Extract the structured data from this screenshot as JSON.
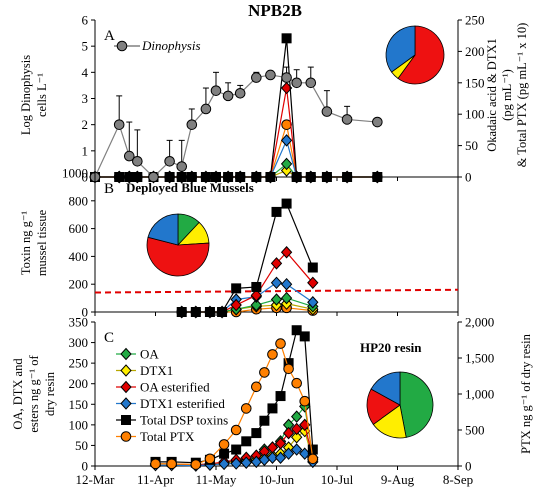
{
  "chart_data": [
    {
      "panel": "A",
      "type": "line",
      "title": "NPB2B",
      "y_left_label": [
        "Log Dinophysis",
        "cells L⁻¹"
      ],
      "y_right_label": [
        "Okadaic acid & DTX1",
        "(pg mL⁻¹)",
        "& Total PTX (pg mL⁻¹ x 10)"
      ],
      "y_left_ticks": [
        "0",
        "1",
        "2",
        "3",
        "4",
        "5",
        "6"
      ],
      "y_right_ticks": [
        "0",
        "50",
        "100",
        "150",
        "200",
        "250"
      ],
      "ylim": [
        0,
        6
      ],
      "ylim_right": [
        0,
        250
      ],
      "legend_labels": [
        "Dinophysis"
      ],
      "pie": [
        {
          "label": "Total DSP",
          "value": 60,
          "color": "#ee1111"
        },
        {
          "label": "OA",
          "value": 5,
          "color": "#ffee00"
        },
        {
          "label": "DTX1",
          "value": 35,
          "color": "#2277cc"
        }
      ],
      "series": [
        {
          "name": "Dinophysis",
          "color": "#808080",
          "marker": "circle",
          "x": [
            0,
            12,
            17,
            21,
            29,
            37,
            43,
            48,
            55,
            60,
            66,
            72,
            80,
            87,
            95,
            100,
            107,
            115,
            125,
            140
          ],
          "y": [
            0,
            2.0,
            0.8,
            0.6,
            0,
            0.6,
            0.4,
            2.0,
            2.6,
            3.3,
            3.1,
            3.2,
            3.8,
            3.9,
            3.8,
            3.6,
            3.6,
            2.5,
            2.2,
            2.1
          ]
        },
        {
          "name": "Total DSP",
          "color": "#000000",
          "marker": "square",
          "x": [
            0,
            12,
            17,
            21,
            29,
            37,
            43,
            48,
            55,
            60,
            66,
            72,
            80,
            87,
            95,
            100,
            107,
            115,
            125,
            140
          ],
          "y": [
            0,
            0,
            0,
            0,
            0,
            0,
            0,
            0,
            0,
            0,
            0,
            0,
            0,
            0,
            5.3,
            0,
            0,
            0,
            0,
            0
          ]
        },
        {
          "name": "OA esterified",
          "color": "#e00000",
          "marker": "diamond",
          "x": [
            0,
            12,
            17,
            21,
            29,
            37,
            43,
            48,
            55,
            60,
            66,
            72,
            80,
            87,
            95,
            100,
            107,
            115,
            125,
            140
          ],
          "y": [
            0,
            0,
            0,
            0,
            0,
            0,
            0,
            0,
            0,
            0,
            0,
            0,
            0,
            0,
            3.4,
            0,
            0,
            0,
            0,
            0
          ]
        },
        {
          "name": "DTX1 esterified",
          "color": "#2277cc",
          "marker": "diamond",
          "x": [
            0,
            12,
            17,
            21,
            29,
            37,
            43,
            48,
            55,
            60,
            66,
            72,
            80,
            87,
            95,
            100,
            107,
            115,
            125,
            140
          ],
          "y": [
            0,
            0,
            0,
            0,
            0,
            0,
            0,
            0,
            0,
            0,
            0,
            0,
            0,
            0,
            1.4,
            0,
            0,
            0,
            0,
            0
          ]
        },
        {
          "name": "OA",
          "color": "#22aa44",
          "marker": "diamond",
          "x": [
            0,
            12,
            17,
            21,
            29,
            37,
            43,
            48,
            55,
            60,
            66,
            72,
            80,
            87,
            95,
            100,
            107,
            115,
            125,
            140
          ],
          "y": [
            0,
            0,
            0,
            0,
            0,
            0,
            0,
            0,
            0,
            0,
            0,
            0,
            0,
            0,
            0.5,
            0,
            0,
            0,
            0,
            0
          ]
        },
        {
          "name": "DTX1",
          "color": "#ffee00",
          "marker": "diamond",
          "x": [
            0,
            12,
            17,
            21,
            29,
            37,
            43,
            48,
            55,
            60,
            66,
            72,
            80,
            87,
            95,
            100,
            107,
            115,
            125,
            140
          ],
          "y": [
            0,
            0,
            0,
            0,
            0,
            0,
            0,
            0,
            0,
            0,
            0,
            0,
            0,
            0,
            0.25,
            0,
            0,
            0,
            0,
            0
          ]
        },
        {
          "name": "Total PTX",
          "color": "#ff8000",
          "marker": "circle",
          "x": [
            0,
            12,
            17,
            21,
            29,
            37,
            43,
            48,
            55,
            60,
            66,
            72,
            80,
            87,
            95,
            100,
            107,
            115,
            125,
            140
          ],
          "y": [
            0,
            0,
            0,
            0,
            0,
            0,
            0,
            0,
            0,
            0,
            0,
            0,
            0,
            0,
            2.0,
            0,
            0,
            0,
            0,
            0
          ]
        }
      ]
    },
    {
      "panel": "B",
      "type": "line",
      "annotation": "Deployed Blue Mussels",
      "y_label": [
        "Toxin ng g⁻¹",
        "mussel tissue"
      ],
      "y_ticks": [
        "0",
        "200",
        "400",
        "600",
        "800",
        "1000"
      ],
      "ylim": [
        0,
        1000
      ],
      "reference_line": {
        "y_start": 140,
        "y_end": 160,
        "color": "#e00000",
        "style": "dashed"
      },
      "pie": [
        {
          "label": "OA",
          "value": 12,
          "color": "#22aa44"
        },
        {
          "label": "DTX1",
          "value": 12,
          "color": "#ffee00"
        },
        {
          "label": "OA esterified",
          "value": 55,
          "color": "#ee1111"
        },
        {
          "label": "DTX1 esterified",
          "value": 21,
          "color": "#2277cc"
        }
      ],
      "series": [
        {
          "name": "Total DSP",
          "color": "#000000",
          "marker": "square",
          "x": [
            43,
            50,
            57,
            63,
            70,
            80,
            90,
            95,
            108
          ],
          "y": [
            0,
            0,
            0,
            0,
            170,
            180,
            720,
            780,
            320
          ]
        },
        {
          "name": "OA esterified",
          "color": "#e00000",
          "marker": "diamond",
          "x": [
            43,
            50,
            57,
            63,
            70,
            80,
            90,
            95,
            108
          ],
          "y": [
            0,
            0,
            0,
            0,
            50,
            120,
            350,
            430,
            210
          ]
        },
        {
          "name": "DTX1 esterified",
          "color": "#2277cc",
          "marker": "diamond",
          "x": [
            43,
            50,
            57,
            63,
            70,
            80,
            90,
            95,
            108
          ],
          "y": [
            0,
            0,
            0,
            0,
            90,
            110,
            210,
            200,
            70
          ]
        },
        {
          "name": "OA",
          "color": "#22aa44",
          "marker": "diamond",
          "x": [
            43,
            50,
            57,
            63,
            70,
            80,
            90,
            95,
            108
          ],
          "y": [
            0,
            0,
            0,
            0,
            20,
            50,
            90,
            100,
            40
          ]
        },
        {
          "name": "DTX1",
          "color": "#ffee00",
          "marker": "diamond",
          "x": [
            43,
            50,
            57,
            63,
            70,
            80,
            90,
            95,
            108
          ],
          "y": [
            0,
            0,
            0,
            0,
            20,
            40,
            50,
            60,
            20
          ]
        },
        {
          "name": "Total PTX",
          "color": "#ff8000",
          "marker": "circle",
          "x": [
            43,
            50,
            57,
            63,
            70,
            80,
            90,
            95,
            108
          ],
          "y": [
            0,
            0,
            0,
            0,
            0,
            20,
            30,
            30,
            10
          ]
        }
      ]
    },
    {
      "panel": "C",
      "type": "line",
      "annotation": "HP20 resin",
      "y_left_label": [
        "OA, DTX and",
        "esters ng g⁻¹ of",
        "dry resin"
      ],
      "y_right_label": [
        "PTX ng g⁻¹ of dry resin"
      ],
      "y_left_ticks": [
        "0",
        "50",
        "100",
        "150",
        "200",
        "250",
        "300",
        "350"
      ],
      "y_right_ticks": [
        "0",
        "500",
        "1,000",
        "1,500",
        "2,000"
      ],
      "ylim": [
        0,
        350
      ],
      "ylim_right": [
        0,
        2000
      ],
      "x_ticks": [
        "12-Mar",
        "11-Apr",
        "11-May",
        "10-Jun",
        "10-Jul",
        "9-Aug",
        "8-Sep"
      ],
      "xlim": [
        0,
        180
      ],
      "legend_labels": [
        "OA",
        "DTX1",
        "OA esterified",
        "DTX1 esterified",
        "Total DSP toxins",
        "Total PTX"
      ],
      "pie": [
        {
          "label": "OA",
          "value": 47,
          "color": "#22aa44"
        },
        {
          "label": "DTX1",
          "value": 18,
          "color": "#ffee00"
        },
        {
          "label": "OA esterified",
          "value": 18,
          "color": "#ee1111"
        },
        {
          "label": "DTX1 esterified",
          "value": 17,
          "color": "#2277cc"
        }
      ],
      "series": [
        {
          "name": "OA",
          "color": "#22aa44",
          "marker": "diamond",
          "axis": "left",
          "x": [
            30,
            38,
            50,
            57,
            64,
            70,
            75,
            80,
            84,
            88,
            92,
            96,
            100,
            104,
            108
          ],
          "y": [
            5,
            5,
            3,
            5,
            8,
            12,
            18,
            25,
            40,
            45,
            60,
            100,
            120,
            145,
            20
          ]
        },
        {
          "name": "DTX1",
          "color": "#ffee00",
          "marker": "diamond",
          "axis": "left",
          "x": [
            30,
            38,
            50,
            57,
            64,
            70,
            75,
            80,
            84,
            88,
            92,
            96,
            100,
            104,
            108
          ],
          "y": [
            5,
            5,
            3,
            5,
            8,
            10,
            12,
            15,
            20,
            25,
            30,
            45,
            70,
            85,
            15
          ]
        },
        {
          "name": "OA esterified",
          "color": "#e00000",
          "marker": "diamond",
          "axis": "left",
          "x": [
            30,
            38,
            50,
            57,
            64,
            70,
            75,
            80,
            84,
            88,
            92,
            96,
            100,
            104,
            108
          ],
          "y": [
            5,
            5,
            3,
            5,
            10,
            15,
            20,
            25,
            35,
            45,
            55,
            80,
            90,
            100,
            20
          ]
        },
        {
          "name": "DTX1 esterified",
          "color": "#2277cc",
          "marker": "diamond",
          "axis": "left",
          "x": [
            30,
            38,
            50,
            57,
            64,
            70,
            75,
            80,
            84,
            88,
            92,
            96,
            100,
            104,
            108
          ],
          "y": [
            2,
            2,
            1,
            3,
            5,
            6,
            8,
            10,
            15,
            20,
            20,
            30,
            40,
            30,
            10
          ]
        },
        {
          "name": "Total DSP toxins",
          "color": "#000000",
          "marker": "square",
          "axis": "left",
          "x": [
            30,
            38,
            50,
            57,
            64,
            70,
            75,
            80,
            84,
            88,
            92,
            96,
            100,
            104,
            108
          ],
          "y": [
            10,
            10,
            8,
            15,
            30,
            40,
            60,
            80,
            110,
            140,
            170,
            250,
            330,
            315,
            40
          ]
        },
        {
          "name": "Total PTX",
          "color": "#ff8000",
          "marker": "circle",
          "axis": "right",
          "x": [
            30,
            38,
            50,
            57,
            64,
            70,
            75,
            80,
            84,
            88,
            92,
            96,
            100,
            104,
            108
          ],
          "y": [
            30,
            30,
            20,
            100,
            300,
            500,
            800,
            1100,
            1300,
            1550,
            1700,
            1350,
            1150,
            900,
            100
          ]
        }
      ]
    }
  ]
}
